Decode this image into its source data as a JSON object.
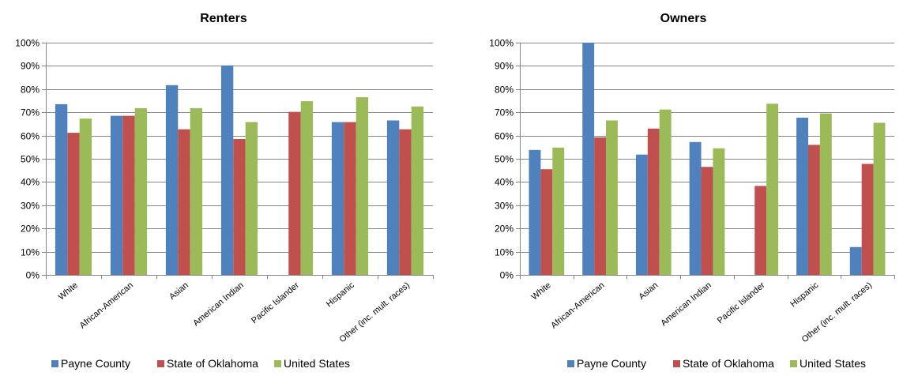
{
  "legend": {
    "items": [
      {
        "label": "Payne County",
        "color": "#4F81BD"
      },
      {
        "label": "State of Oklahoma",
        "color": "#C0504D"
      },
      {
        "label": "United States",
        "color": "#9BBB59"
      }
    ]
  },
  "chart_data": [
    {
      "type": "bar",
      "title": "Renters",
      "categories": [
        "White",
        "African-American",
        "Asian",
        "American Indian",
        "Pacific Islander",
        "Hispanic",
        "Other (inc. mult. races)"
      ],
      "series": [
        {
          "name": "Payne County",
          "color": "#4F81BD",
          "values": [
            73.5,
            68.5,
            81.7,
            90.2,
            0,
            65.8,
            66.5
          ]
        },
        {
          "name": "State of Oklahoma",
          "color": "#C0504D",
          "values": [
            61.2,
            68.5,
            62.7,
            58.5,
            70.2,
            65.8,
            62.7
          ]
        },
        {
          "name": "United States",
          "color": "#9BBB59",
          "values": [
            67.3,
            71.8,
            71.8,
            65.8,
            74.8,
            76.5,
            72.5
          ]
        }
      ],
      "yticks": [
        "0%",
        "10%",
        "20%",
        "30%",
        "40%",
        "50%",
        "60%",
        "70%",
        "80%",
        "90%",
        "100%"
      ],
      "ylim": [
        0,
        100
      ],
      "grid": true,
      "legend_position": "bottom"
    },
    {
      "type": "bar",
      "title": "Owners",
      "categories": [
        "White",
        "African-American",
        "Asian",
        "American Indian",
        "Pacific Islander",
        "Hispanic",
        "Other (inc. mult. races)"
      ],
      "series": [
        {
          "name": "Payne County",
          "color": "#4F81BD",
          "values": [
            53.8,
            100,
            51.8,
            57.2,
            0,
            67.7,
            12.0
          ]
        },
        {
          "name": "State of Oklahoma",
          "color": "#C0504D",
          "values": [
            45.5,
            59.2,
            63.0,
            46.5,
            38.3,
            56.0,
            47.8
          ]
        },
        {
          "name": "United States",
          "color": "#9BBB59",
          "values": [
            54.8,
            66.5,
            71.2,
            54.5,
            73.7,
            69.5,
            65.5
          ]
        }
      ],
      "yticks": [
        "0%",
        "10%",
        "20%",
        "30%",
        "40%",
        "50%",
        "60%",
        "70%",
        "80%",
        "90%",
        "100%"
      ],
      "ylim": [
        0,
        100
      ],
      "grid": true,
      "legend_position": "bottom"
    }
  ]
}
